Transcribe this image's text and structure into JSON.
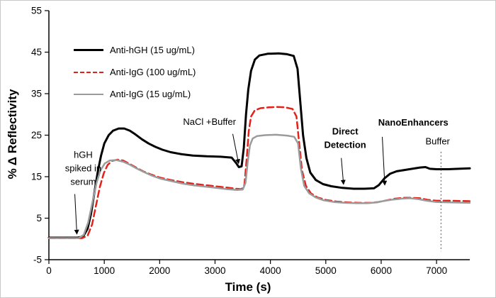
{
  "chart_data": {
    "type": "line",
    "title": "",
    "xlabel": "Time (s)",
    "ylabel": "% Δ Reflectivity",
    "xlim": [
      0,
      7600
    ],
    "ylim": [
      -5,
      55
    ],
    "xticks": [
      0,
      1000,
      2000,
      3000,
      4000,
      5000,
      6000,
      7000
    ],
    "yticks": [
      -5,
      5,
      15,
      25,
      35,
      45,
      55
    ],
    "grid": false,
    "legend_position": "upper-left-inside",
    "series": [
      {
        "id": "anti-hgh-15",
        "name": "Anti-hGH (15 ug/mL)",
        "color": "#000000",
        "style": "solid",
        "width": 3,
        "dash": "",
        "points": [
          [
            0,
            0.3
          ],
          [
            520,
            0.3
          ],
          [
            620,
            0.6
          ],
          [
            700,
            2.5
          ],
          [
            760,
            6
          ],
          [
            820,
            11
          ],
          [
            880,
            16
          ],
          [
            940,
            20
          ],
          [
            1000,
            23
          ],
          [
            1080,
            25
          ],
          [
            1160,
            26.1
          ],
          [
            1260,
            26.6
          ],
          [
            1360,
            26.6
          ],
          [
            1460,
            26.1
          ],
          [
            1560,
            25.2
          ],
          [
            1680,
            24
          ],
          [
            1800,
            23
          ],
          [
            1920,
            22.2
          ],
          [
            2050,
            21.5
          ],
          [
            2200,
            20.9
          ],
          [
            2400,
            20.4
          ],
          [
            2600,
            20.1
          ],
          [
            2850,
            19.9
          ],
          [
            3100,
            19.8
          ],
          [
            3300,
            19.6
          ],
          [
            3380,
            18.3
          ],
          [
            3430,
            17.3
          ],
          [
            3480,
            17.5
          ],
          [
            3520,
            22
          ],
          [
            3560,
            30
          ],
          [
            3600,
            36
          ],
          [
            3650,
            40.5
          ],
          [
            3720,
            43.2
          ],
          [
            3800,
            44.2
          ],
          [
            3950,
            44.6
          ],
          [
            4150,
            44.7
          ],
          [
            4300,
            44.5
          ],
          [
            4420,
            44.1
          ],
          [
            4490,
            41
          ],
          [
            4540,
            33
          ],
          [
            4590,
            25
          ],
          [
            4650,
            19.5
          ],
          [
            4720,
            16
          ],
          [
            4820,
            14.2
          ],
          [
            4950,
            13.2
          ],
          [
            5100,
            12.7
          ],
          [
            5300,
            12.3
          ],
          [
            5500,
            12.1
          ],
          [
            5700,
            12.1
          ],
          [
            5870,
            12.2
          ],
          [
            5960,
            13
          ],
          [
            6060,
            14.6
          ],
          [
            6160,
            15.7
          ],
          [
            6280,
            16.3
          ],
          [
            6420,
            16.6
          ],
          [
            6560,
            16.9
          ],
          [
            6700,
            17.2
          ],
          [
            6800,
            17.3
          ],
          [
            6880,
            16.9
          ],
          [
            7000,
            16.8
          ],
          [
            7200,
            16.8
          ],
          [
            7600,
            17
          ]
        ]
      },
      {
        "id": "anti-igg-100",
        "name": "Anti-IgG (100 ug/mL)",
        "color": "#e32119",
        "style": "dashed",
        "width": 2.5,
        "dash": "9,5",
        "points": [
          [
            0,
            0.2
          ],
          [
            600,
            0.2
          ],
          [
            700,
            0.8
          ],
          [
            780,
            3.5
          ],
          [
            850,
            8
          ],
          [
            920,
            12.5
          ],
          [
            990,
            15.8
          ],
          [
            1060,
            17.8
          ],
          [
            1140,
            18.8
          ],
          [
            1240,
            19.1
          ],
          [
            1340,
            18.9
          ],
          [
            1440,
            18.2
          ],
          [
            1560,
            17.3
          ],
          [
            1700,
            16.3
          ],
          [
            1850,
            15.5
          ],
          [
            2000,
            14.8
          ],
          [
            2200,
            14.2
          ],
          [
            2400,
            13.7
          ],
          [
            2600,
            13.3
          ],
          [
            2800,
            13
          ],
          [
            3000,
            12.7
          ],
          [
            3200,
            12.4
          ],
          [
            3380,
            12.1
          ],
          [
            3480,
            12
          ],
          [
            3530,
            13
          ],
          [
            3570,
            19
          ],
          [
            3610,
            26
          ],
          [
            3650,
            29.5
          ],
          [
            3720,
            31
          ],
          [
            3820,
            31.5
          ],
          [
            3970,
            31.7
          ],
          [
            4120,
            31.8
          ],
          [
            4270,
            31.7
          ],
          [
            4400,
            31.3
          ],
          [
            4470,
            29.5
          ],
          [
            4520,
            23
          ],
          [
            4570,
            16.5
          ],
          [
            4640,
            12.8
          ],
          [
            4730,
            11
          ],
          [
            4850,
            10
          ],
          [
            5000,
            9.4
          ],
          [
            5200,
            9
          ],
          [
            5400,
            8.8
          ],
          [
            5600,
            8.7
          ],
          [
            5800,
            8.7
          ],
          [
            5950,
            8.9
          ],
          [
            6100,
            9.3
          ],
          [
            6250,
            9.7
          ],
          [
            6400,
            9.9
          ],
          [
            6550,
            9.9
          ],
          [
            6700,
            9.8
          ],
          [
            6850,
            9.4
          ],
          [
            7000,
            9.2
          ],
          [
            7250,
            9.2
          ],
          [
            7600,
            9.1
          ]
        ]
      },
      {
        "id": "anti-igg-15",
        "name": "Anti-IgG (15 ug/mL)",
        "color": "#9b9b9b",
        "style": "solid",
        "width": 2.5,
        "dash": "",
        "points": [
          [
            0,
            0.2
          ],
          [
            540,
            0.2
          ],
          [
            630,
            1
          ],
          [
            710,
            4
          ],
          [
            790,
            9
          ],
          [
            860,
            13.5
          ],
          [
            930,
            16.5
          ],
          [
            1010,
            18.2
          ],
          [
            1100,
            18.9
          ],
          [
            1220,
            19
          ],
          [
            1340,
            18.6
          ],
          [
            1460,
            17.9
          ],
          [
            1580,
            17
          ],
          [
            1720,
            16.1
          ],
          [
            1870,
            15.2
          ],
          [
            2020,
            14.5
          ],
          [
            2220,
            13.9
          ],
          [
            2420,
            13.3
          ],
          [
            2620,
            12.9
          ],
          [
            2820,
            12.6
          ],
          [
            3020,
            12.3
          ],
          [
            3220,
            12
          ],
          [
            3400,
            11.8
          ],
          [
            3500,
            11.9
          ],
          [
            3550,
            13.5
          ],
          [
            3590,
            18.5
          ],
          [
            3630,
            22.5
          ],
          [
            3680,
            24.2
          ],
          [
            3760,
            24.8
          ],
          [
            3900,
            25
          ],
          [
            4100,
            25.1
          ],
          [
            4300,
            24.9
          ],
          [
            4430,
            24.6
          ],
          [
            4500,
            23
          ],
          [
            4550,
            17
          ],
          [
            4610,
            12.8
          ],
          [
            4700,
            11
          ],
          [
            4820,
            10
          ],
          [
            4960,
            9.3
          ],
          [
            5150,
            8.9
          ],
          [
            5350,
            8.7
          ],
          [
            5550,
            8.6
          ],
          [
            5750,
            8.6
          ],
          [
            5920,
            8.8
          ],
          [
            6070,
            9.2
          ],
          [
            6220,
            9.5
          ],
          [
            6370,
            9.7
          ],
          [
            6520,
            9.8
          ],
          [
            6670,
            9.6
          ],
          [
            6820,
            9.2
          ],
          [
            7000,
            8.9
          ],
          [
            7250,
            8.8
          ],
          [
            7600,
            8.7
          ]
        ]
      }
    ],
    "annotations": [
      {
        "id": "hgh-spiked-in-serum",
        "lines": [
          "hGH",
          "spiked in",
          "serum"
        ],
        "bold": false,
        "x": 620,
        "y": 19.5,
        "arrow": {
          "x1": 468,
          "y1": 10.8,
          "x2": 505,
          "y2": 1.2
        }
      },
      {
        "id": "nacl-buffer",
        "lines": [
          "NaCl +Buffer"
        ],
        "bold": false,
        "x": 2900,
        "y": 27.5,
        "arrow": {
          "x1": 3320,
          "y1": 25.3,
          "x2": 3425,
          "y2": 18.2
        }
      },
      {
        "id": "direct-detection",
        "lines": [
          "Direct",
          "Detection"
        ],
        "bold": true,
        "x": 5350,
        "y": 25.2,
        "arrow": {
          "x1": 5280,
          "y1": 19.5,
          "x2": 5320,
          "y2": 13.2
        }
      },
      {
        "id": "nanoenhancers",
        "lines": [
          "NanoEnhancers"
        ],
        "bold": true,
        "x": 6580,
        "y": 27.3,
        "arrow": {
          "x1": 6020,
          "y1": 24.6,
          "x2": 6065,
          "y2": 13
        }
      },
      {
        "id": "buffer",
        "lines": [
          "Buffer"
        ],
        "bold": false,
        "x": 7020,
        "y": 22.8,
        "vline": {
          "x": 7080,
          "y1": 21,
          "y2": -3
        }
      }
    ]
  }
}
